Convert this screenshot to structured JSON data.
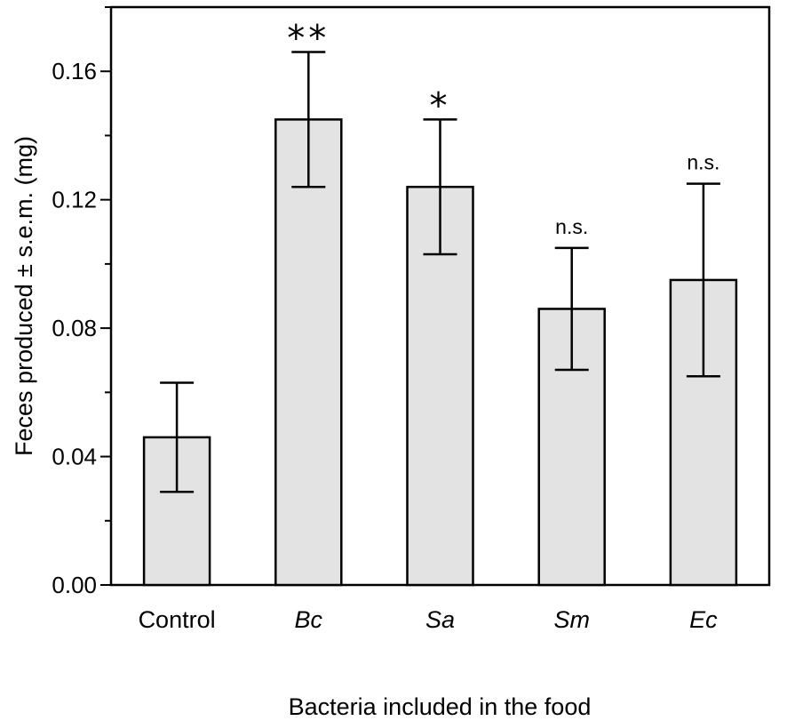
{
  "chart_data": {
    "type": "bar",
    "categories": [
      "Control",
      "Bc",
      "Sa",
      "Sm",
      "Ec"
    ],
    "italic_categories": [
      "Bc",
      "Sa",
      "Sm",
      "Ec"
    ],
    "values": [
      0.046,
      0.145,
      0.124,
      0.086,
      0.095
    ],
    "error_sem": [
      0.017,
      0.021,
      0.021,
      0.019,
      0.03
    ],
    "significance": [
      "",
      "**",
      "*",
      "n.s.",
      "n.s."
    ],
    "xlabel": "Bacteria included in the food",
    "ylabel": "Feces produced ± s.e.m. (mg)",
    "ylim": [
      0,
      0.18
    ],
    "yticks": [
      0.0,
      0.04,
      0.08,
      0.12,
      0.16
    ],
    "ytick_labels": [
      "0.00",
      "0.04",
      "0.08",
      "0.12",
      "0.16"
    ],
    "minor_tick_step": 0.02,
    "bar_color": "#e3e3e3",
    "edge_color": "#000000",
    "grid": false
  }
}
